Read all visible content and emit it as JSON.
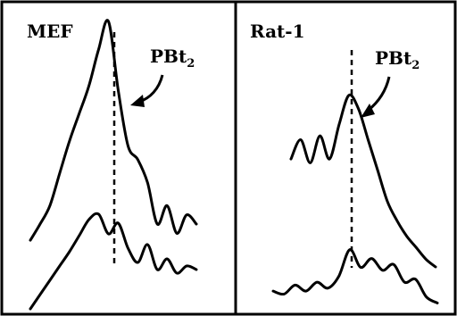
{
  "chart_data": [
    {
      "type": "line",
      "panel_label": "MEF",
      "annotation": {
        "base": "PBt",
        "subscript": "2"
      },
      "series": [
        {
          "values": [
            0.05,
            0.12,
            0.2,
            0.34,
            0.48,
            0.6,
            0.72,
            0.88,
            1.0,
            0.7,
            0.46,
            0.4,
            0.3,
            0.12,
            0.2,
            0.08,
            0.16,
            0.12
          ]
        },
        {
          "values": [
            0.02,
            0.1,
            0.18,
            0.26,
            0.34,
            0.43,
            0.52,
            0.55,
            0.44,
            0.5,
            0.36,
            0.28,
            0.38,
            0.24,
            0.3,
            0.22,
            0.26,
            0.24
          ]
        }
      ]
    },
    {
      "type": "line",
      "panel_label": "Rat-1",
      "annotation": {
        "base": "PBt",
        "subscript": "2"
      },
      "series": [
        {
          "values": [
            0.62,
            0.72,
            0.6,
            0.74,
            0.62,
            0.8,
            0.95,
            0.88,
            0.72,
            0.56,
            0.4,
            0.3,
            0.22,
            0.16,
            0.1,
            0.06
          ]
        },
        {
          "values": [
            0.12,
            0.1,
            0.16,
            0.12,
            0.18,
            0.14,
            0.22,
            0.4,
            0.28,
            0.34,
            0.26,
            0.3,
            0.18,
            0.2,
            0.08,
            0.04
          ]
        }
      ]
    }
  ]
}
